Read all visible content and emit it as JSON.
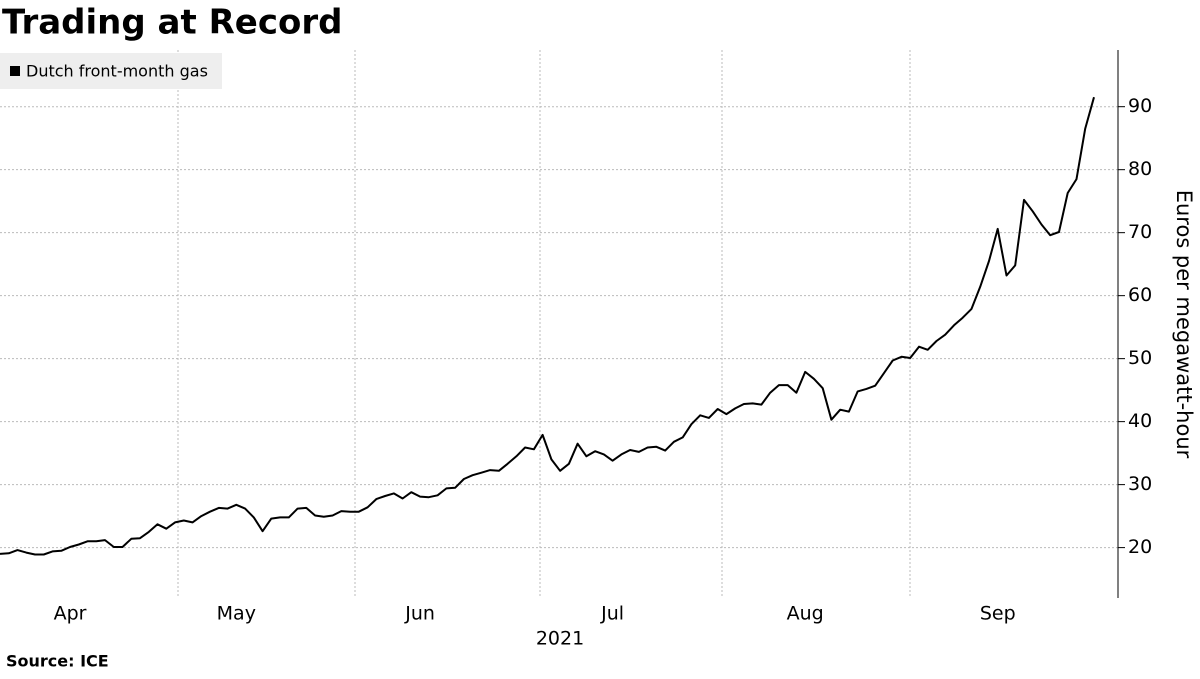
{
  "chart_data": {
    "type": "line",
    "title": "Trading at Record",
    "source": "Source: ICE",
    "ylabel": "Euros per megawatt-hour",
    "xlabel": "2021",
    "legend": "top-left",
    "grid": true,
    "series": [
      {
        "name": "Dutch front-month gas",
        "color": "#000000",
        "values": [
          19.0,
          19.1,
          19.6,
          19.2,
          18.9,
          18.9,
          19.4,
          19.5,
          20.1,
          20.5,
          21.0,
          21.0,
          21.2,
          20.1,
          20.1,
          21.4,
          21.5,
          22.5,
          23.7,
          23.0,
          24.0,
          24.3,
          24.0,
          25.0,
          25.7,
          26.3,
          26.2,
          26.8,
          26.2,
          24.8,
          22.6,
          24.6,
          24.8,
          24.8,
          26.2,
          26.3,
          25.1,
          24.9,
          25.1,
          25.8,
          25.7,
          25.7,
          26.4,
          27.7,
          28.2,
          28.6,
          27.8,
          28.8,
          28.1,
          28.0,
          28.3,
          29.4,
          29.5,
          30.9,
          31.5,
          31.9,
          32.3,
          32.2,
          33.3,
          34.5,
          35.9,
          35.6,
          37.9,
          34.0,
          32.2,
          33.3,
          36.5,
          34.5,
          35.3,
          34.8,
          33.8,
          34.8,
          35.5,
          35.2,
          35.9,
          36.0,
          35.4,
          36.8,
          37.5,
          39.6,
          41.0,
          40.6,
          42.0,
          41.2,
          42.1,
          42.8,
          42.9,
          42.7,
          44.6,
          45.8,
          45.8,
          44.6,
          47.9,
          46.8,
          45.3,
          40.3,
          41.9,
          41.6,
          44.8,
          45.2,
          45.7,
          47.7,
          49.7,
          50.3,
          50.1,
          51.9,
          51.4,
          52.8,
          53.8,
          55.3,
          56.5,
          57.9,
          61.4,
          65.5,
          70.6,
          63.2,
          64.8,
          75.2,
          73.4,
          71.3,
          69.6,
          70.1,
          76.3,
          78.5,
          86.5,
          91.5
        ]
      }
    ],
    "categories": [
      null,
      null,
      null,
      null,
      null,
      null,
      null,
      null,
      "Apr",
      null,
      null,
      null,
      null,
      null,
      null,
      null,
      null,
      null,
      null,
      null,
      null,
      null,
      null,
      null,
      null,
      null,
      null,
      "May",
      null,
      null,
      null,
      null,
      null,
      null,
      null,
      null,
      null,
      null,
      null,
      null,
      null,
      null,
      null,
      null,
      null,
      null,
      null,
      null,
      "Jun",
      null,
      null,
      null,
      null,
      null,
      null,
      null,
      null,
      null,
      null,
      null,
      null,
      null,
      null,
      null,
      null,
      null,
      null,
      null,
      null,
      null,
      "Jul",
      null,
      null,
      null,
      null,
      null,
      null,
      null,
      null,
      null,
      null,
      null,
      null,
      null,
      null,
      null,
      null,
      null,
      null,
      null,
      null,
      null,
      "Aug",
      null,
      null,
      null,
      null,
      null,
      null,
      null,
      null,
      null,
      null,
      null,
      null,
      null,
      null,
      null,
      null,
      null,
      null,
      null,
      null,
      null,
      "Sep",
      null,
      null,
      null,
      null,
      null,
      null,
      null,
      null,
      null,
      null,
      null
    ],
    "ylim": [
      12,
      99
    ],
    "yticks": [
      20,
      30,
      40,
      50,
      60,
      70,
      80,
      90
    ]
  }
}
